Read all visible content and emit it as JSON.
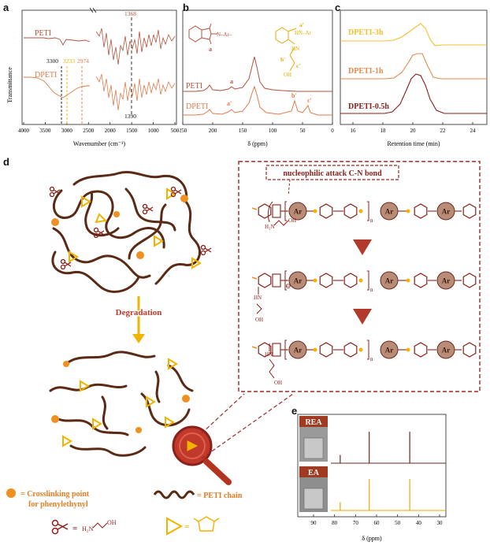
{
  "panel_a": {
    "letter": "a",
    "ylabel": "Transmittance",
    "xlabel": "Wavenumber (cm⁻¹)",
    "ticks": [
      "4000",
      "3500",
      "3000",
      "2500",
      "2000",
      "1500",
      "1000",
      "500"
    ],
    "series": [
      {
        "name": "PETI",
        "color": "#b5513a"
      },
      {
        "name": "DPETI",
        "color": "#e07b4a"
      }
    ],
    "annotations": {
      "a3300": "3300",
      "a3233": "3233",
      "a2974": "2974",
      "a1368": "1368",
      "a1390": "1390"
    },
    "ann_colors": {
      "a3300": "#111111",
      "a3233": "#e8b400",
      "a2974": "#e07b4a",
      "a1368": "#b5513a",
      "a1390": "#111111"
    }
  },
  "panel_b": {
    "letter": "b",
    "xlabel": "δ (ppm)",
    "ticks": [
      "250",
      "200",
      "150",
      "100",
      "50",
      "0"
    ],
    "series": [
      {
        "name": "PETI",
        "color": "#b5513a"
      },
      {
        "name": "DPETI",
        "color": "#e07b4a"
      }
    ],
    "peaks": {
      "a": "a",
      "a_prime": "a'",
      "b_prime": "b'",
      "c_prime": "c'"
    },
    "struct_labels": {
      "a": "a",
      "a_plus": "a'",
      "b_plus": "b'",
      "c_plus": "c'",
      "n_ar": "N–Ar–",
      "hn_ar": "HN–Ar",
      "hn": "HN",
      "oh": "OH"
    }
  },
  "panel_c": {
    "letter": "c",
    "xlabel": "Retention time (min)",
    "ticks": [
      "16",
      "18",
      "20",
      "22",
      "24"
    ],
    "series": [
      {
        "name": "DPETI-3h",
        "color": "#f2c230"
      },
      {
        "name": "DPETI-1h",
        "color": "#e88a4a"
      },
      {
        "name": "DPETI-0.5h",
        "color": "#8b1f1a"
      }
    ]
  },
  "panel_d": {
    "letter": "d",
    "degradation": "Degradation",
    "nucleophilic": "nucleophilic attack C-N bond",
    "ar": "Ar",
    "n_sub": "n",
    "h2n": "H₂N",
    "oh": "OH",
    "hn": "HN",
    "o_minus": "⊖",
    "legend": {
      "crosslink": "= Crosslinking point",
      "crosslink2": "for phenylethynyl",
      "chain": "= PETI chain",
      "eq": "="
    }
  },
  "panel_e": {
    "letter": "e",
    "xlabel": "δ (ppm)",
    "ticks": [
      "90",
      "80",
      "70",
      "60",
      "50",
      "40",
      "30"
    ],
    "series": [
      {
        "name": "REA",
        "color": "#6b2a1f",
        "peaks": [
          77.3,
          63.5,
          44.2
        ]
      },
      {
        "name": "EA",
        "color": "#e8a900",
        "peaks": [
          77.3,
          63.5,
          44.2
        ]
      }
    ]
  },
  "colors": {
    "brown": "#5a2a14",
    "gold": "#f0b400",
    "orange": "#f09020",
    "darkred": "#8b1f1a",
    "dash_red": "#9b2b25"
  }
}
